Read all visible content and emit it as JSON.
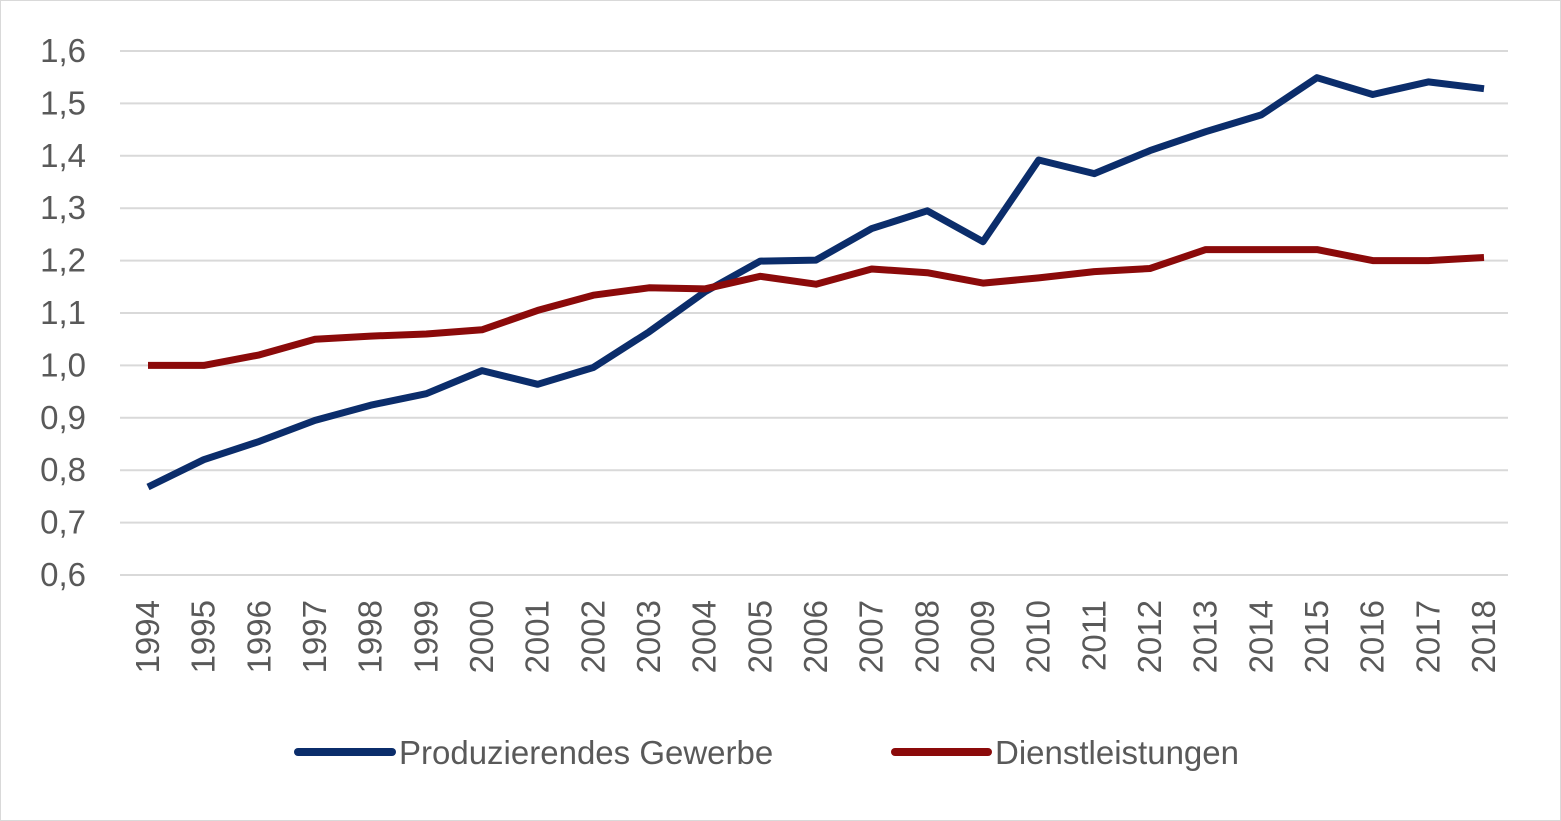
{
  "chart_data": {
    "type": "line",
    "title": "",
    "xlabel": "",
    "ylabel": "",
    "ylim": [
      0.6,
      1.6
    ],
    "yticks": [
      "0,6",
      "0,7",
      "0,8",
      "0,9",
      "1,0",
      "1,1",
      "1,2",
      "1,3",
      "1,4",
      "1,5",
      "1,6"
    ],
    "ytick_values": [
      0.6,
      0.7,
      0.8,
      0.9,
      1.0,
      1.1,
      1.2,
      1.3,
      1.4,
      1.5,
      1.6
    ],
    "grid": true,
    "legend_position": "bottom",
    "categories": [
      "1994",
      "1995",
      "1996",
      "1997",
      "1998",
      "1999",
      "2000",
      "2001",
      "2002",
      "2003",
      "2004",
      "2005",
      "2006",
      "2007",
      "2008",
      "2009",
      "2010",
      "2011",
      "2012",
      "2013",
      "2014",
      "2015",
      "2016",
      "2017",
      "2018"
    ],
    "series": [
      {
        "name": "Produzierendes Gewerbe",
        "color": "#0b2d6b",
        "values": [
          0.768,
          0.82,
          0.855,
          0.895,
          0.924,
          0.946,
          0.99,
          0.964,
          0.996,
          1.064,
          1.14,
          1.199,
          1.201,
          1.261,
          1.295,
          1.236,
          1.392,
          1.366,
          1.41,
          1.446,
          1.478,
          1.549,
          1.517,
          1.541,
          1.528
        ]
      },
      {
        "name": "Dienstleistungen",
        "color": "#8b0a0a",
        "values": [
          1.0,
          1.0,
          1.02,
          1.05,
          1.056,
          1.06,
          1.068,
          1.105,
          1.134,
          1.148,
          1.146,
          1.17,
          1.155,
          1.184,
          1.177,
          1.157,
          1.167,
          1.179,
          1.185,
          1.221,
          1.221,
          1.221,
          1.2,
          1.2,
          1.206
        ]
      }
    ]
  }
}
